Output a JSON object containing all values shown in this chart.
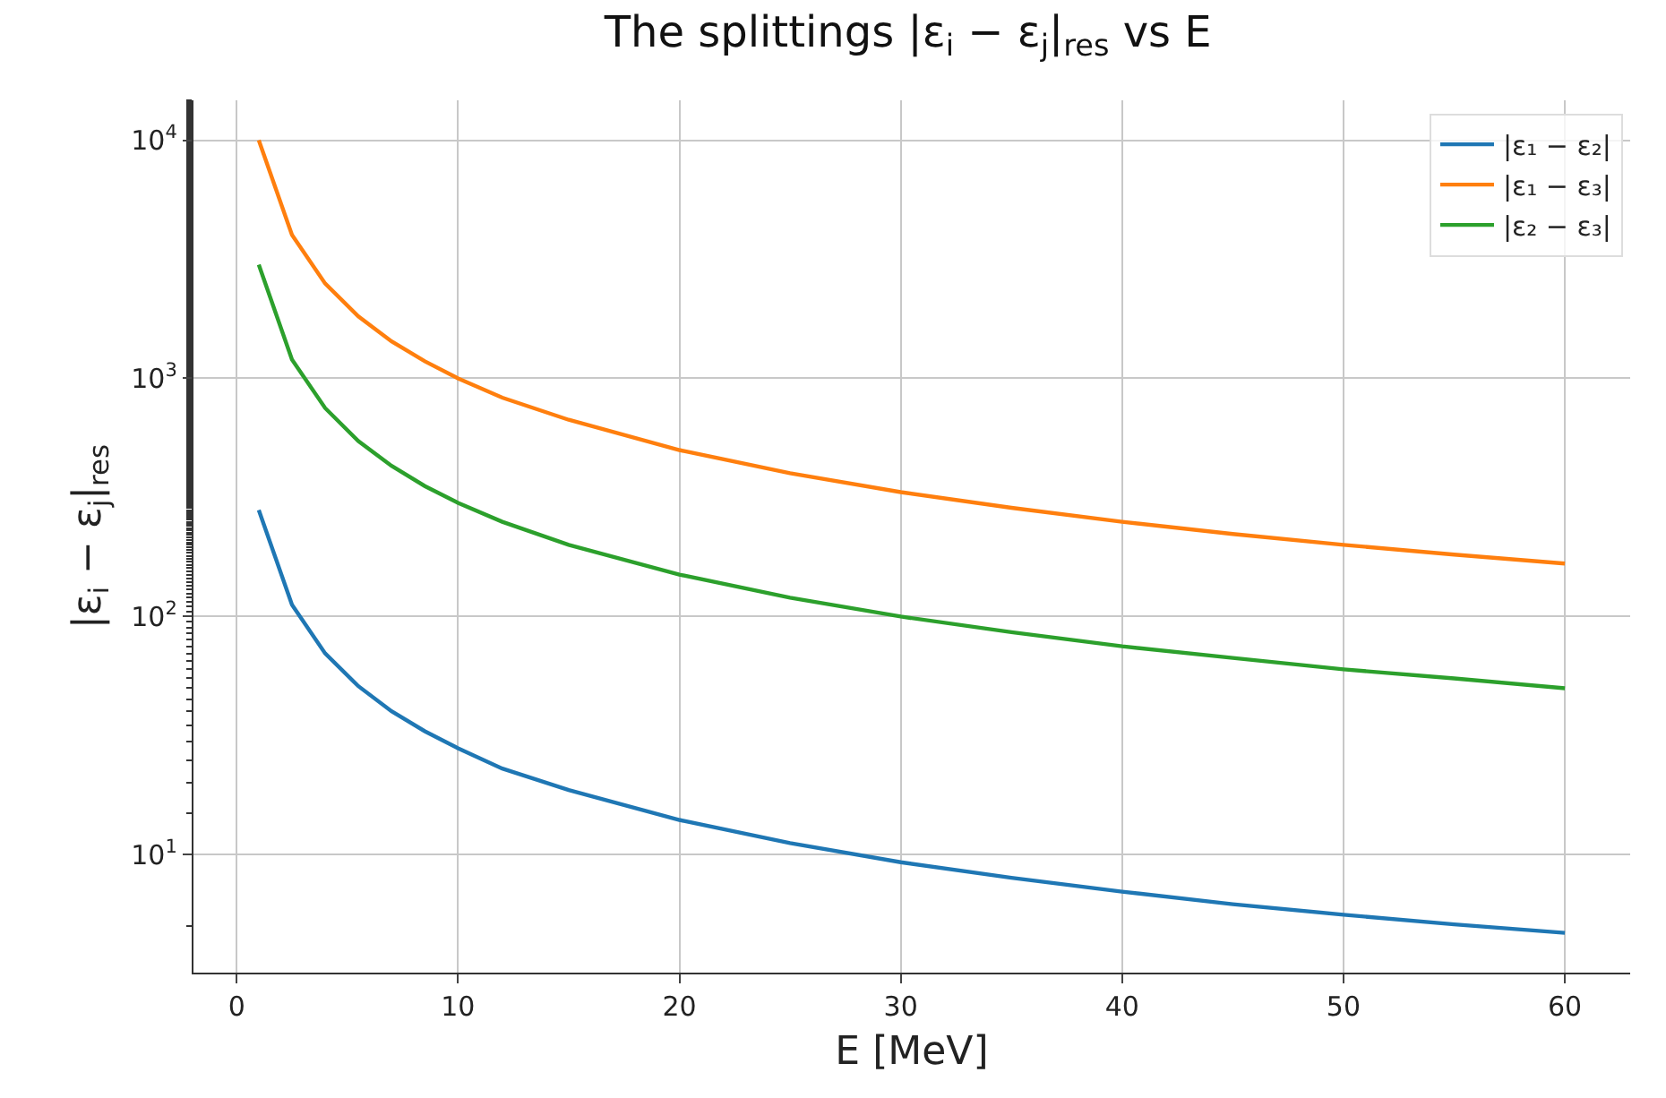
{
  "chart_data": {
    "type": "line",
    "title": "The splittings |ε$_{i}$ − ε$_{j}$|$_{res}$ vs E",
    "xlabel": "E [MeV]",
    "ylabel": "|ε$_{i}$ − ε$_{j}$|$_{res}$",
    "x": [
      1,
      2.5,
      4,
      5.5,
      7,
      8.5,
      10,
      12,
      15,
      20,
      25,
      30,
      35,
      40,
      45,
      50,
      55,
      60
    ],
    "series": [
      {
        "name": "|ε₁ − ε₂|",
        "color": "#1f77b4",
        "values": [
          280,
          112,
          70,
          51,
          40,
          33,
          28,
          23,
          18.7,
          14,
          11.2,
          9.3,
          8,
          7,
          6.2,
          5.6,
          5.1,
          4.7
        ]
      },
      {
        "name": "|ε₁ − ε₃|",
        "color": "#ff7f0e",
        "values": [
          10000,
          4000,
          2500,
          1820,
          1430,
          1180,
          1000,
          830,
          670,
          500,
          400,
          333,
          286,
          250,
          222,
          200,
          182,
          167
        ]
      },
      {
        "name": "|ε₂ − ε₃|",
        "color": "#2ca02c",
        "values": [
          3000,
          1200,
          750,
          545,
          429,
          353,
          300,
          250,
          200,
          150,
          120,
          100,
          86,
          75,
          67,
          60,
          55,
          50
        ]
      }
    ],
    "xlim": [
      -1.95,
      62.95
    ],
    "xticks": [
      0,
      10,
      20,
      30,
      40,
      50,
      60
    ],
    "ylim": [
      3.2,
      14700
    ],
    "yticks": [
      {
        "value": 10,
        "label": "10$^{1}$"
      },
      {
        "value": 100,
        "label": "10$^{2}$"
      },
      {
        "value": 1000,
        "label": "10$^{3}$"
      },
      {
        "value": 10000,
        "label": "10$^{4}$"
      }
    ],
    "log": "y",
    "grid": true,
    "legend": "top right",
    "marker": "none",
    "line_style": "solid"
  }
}
